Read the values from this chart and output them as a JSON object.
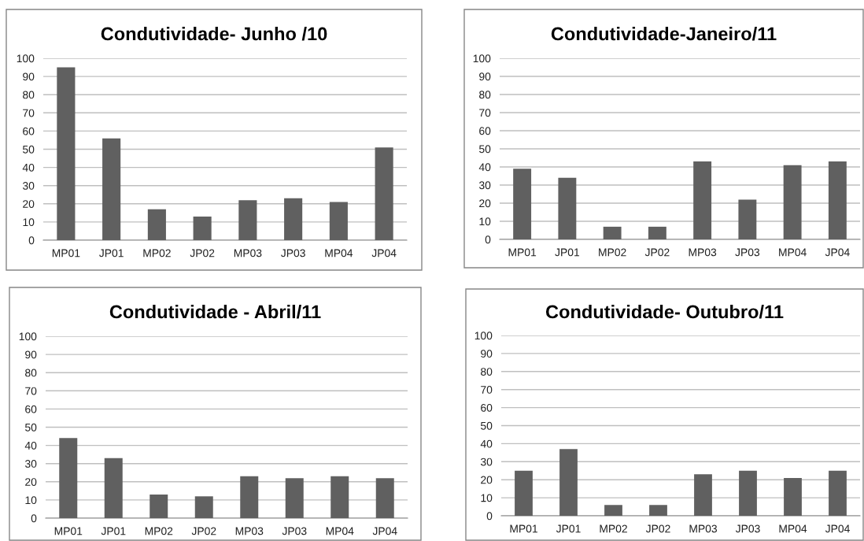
{
  "chart_data": [
    {
      "type": "bar",
      "title": "Condutividade- Junho /10",
      "categories": [
        "MP01",
        "JP01",
        "MP02",
        "JP02",
        "MP03",
        "JP03",
        "MP04",
        "JP04"
      ],
      "values": [
        95,
        56,
        17,
        13,
        22,
        23,
        21,
        51
      ],
      "color": "#606060",
      "ylim": [
        0,
        100
      ],
      "yticks": [
        0,
        10,
        20,
        30,
        40,
        50,
        60,
        70,
        80,
        90,
        100
      ],
      "grid": "y"
    },
    {
      "type": "bar",
      "title": "Condutividade-Janeiro/11",
      "categories": [
        "MP01",
        "JP01",
        "MP02",
        "JP02",
        "MP03",
        "JP03",
        "MP04",
        "JP04"
      ],
      "values": [
        39,
        34,
        7,
        7,
        43,
        22,
        41,
        43
      ],
      "color": "#606060",
      "ylim": [
        0,
        100
      ],
      "yticks": [
        0,
        10,
        20,
        30,
        40,
        50,
        60,
        70,
        80,
        90,
        100
      ],
      "grid": "y"
    },
    {
      "type": "bar",
      "title": "Condutividade - Abril/11",
      "categories": [
        "MP01",
        "JP01",
        "MP02",
        "JP02",
        "MP03",
        "JP03",
        "MP04",
        "JP04"
      ],
      "values": [
        44,
        33,
        13,
        12,
        23,
        22,
        23,
        22
      ],
      "color": "#606060",
      "ylim": [
        0,
        100
      ],
      "yticks": [
        0,
        10,
        20,
        30,
        40,
        50,
        60,
        70,
        80,
        90,
        100
      ],
      "grid": "y"
    },
    {
      "type": "bar",
      "title": "Condutividade- Outubro/11",
      "categories": [
        "MP01",
        "JP01",
        "MP02",
        "JP02",
        "MP03",
        "JP03",
        "MP04",
        "JP04"
      ],
      "values": [
        25,
        37,
        6,
        6,
        23,
        25,
        21,
        25
      ],
      "color": "#606060",
      "ylim": [
        0,
        100
      ],
      "yticks": [
        0,
        10,
        20,
        30,
        40,
        50,
        60,
        70,
        80,
        90,
        100
      ],
      "grid": "y"
    }
  ]
}
